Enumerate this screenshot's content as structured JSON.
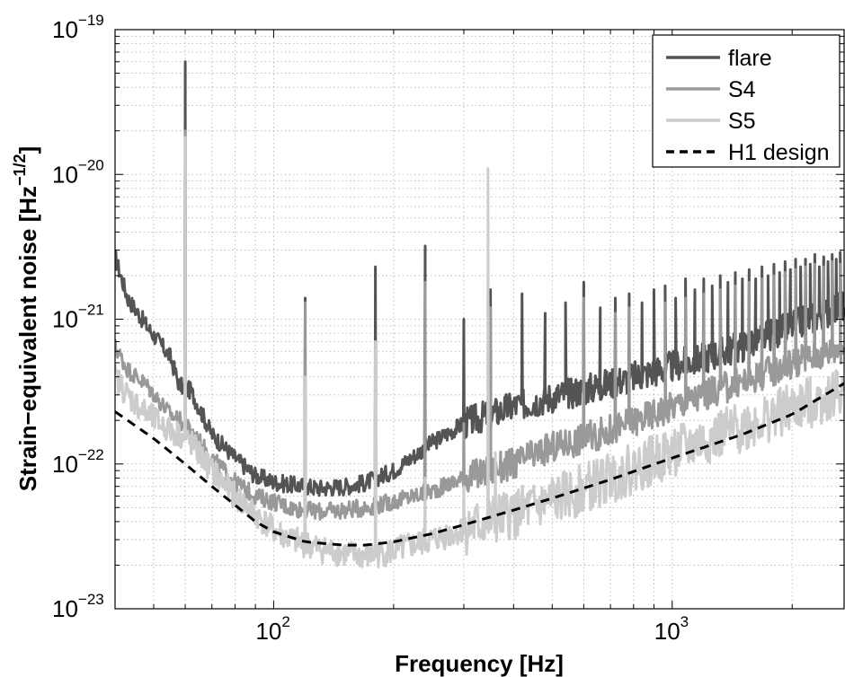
{
  "chart_data": {
    "type": "line",
    "title": "",
    "xscale": "log",
    "yscale": "log",
    "xlim": [
      40,
      2700
    ],
    "ylim": [
      1e-23,
      1e-19
    ],
    "grid": true,
    "legend_position": "top-right",
    "xlabel": "Frequency [Hz]",
    "ylabel": {
      "base": "Strain−equivalent noise [Hz",
      "sup": "−1/2",
      "close": "]"
    },
    "x_ticks": [
      {
        "base": "10",
        "exp": "2",
        "value": 100
      },
      {
        "base": "10",
        "exp": "3",
        "value": 1000
      }
    ],
    "y_ticks": [
      {
        "base": "10",
        "exp": "−23",
        "value": 1e-23
      },
      {
        "base": "10",
        "exp": "−22",
        "value": 1e-22
      },
      {
        "base": "10",
        "exp": "−21",
        "value": 1e-21
      },
      {
        "base": "10",
        "exp": "−20",
        "value": 1e-20
      },
      {
        "base": "10",
        "exp": "−19",
        "value": 1e-19
      }
    ],
    "series": [
      {
        "name": "flare",
        "color": "#545454",
        "style": "solid",
        "baseline": [
          [
            40,
            2.7e-21
          ],
          [
            43,
            1.4e-21
          ],
          [
            48,
            9e-22
          ],
          [
            55,
            5.5e-22
          ],
          [
            58,
            3.5e-22
          ],
          [
            62,
            3.2e-22
          ],
          [
            70,
            1.6e-22
          ],
          [
            80,
            1.1e-22
          ],
          [
            90,
            8.3e-23
          ],
          [
            100,
            7.5e-23
          ],
          [
            110,
            7.2e-23
          ],
          [
            120,
            7e-23
          ],
          [
            130,
            6.8e-23
          ],
          [
            150,
            7e-23
          ],
          [
            170,
            7.4e-23
          ],
          [
            200,
            9e-23
          ],
          [
            250,
            1.4e-22
          ],
          [
            300,
            1.9e-22
          ],
          [
            400,
            2.5e-22
          ],
          [
            500,
            2.9e-22
          ],
          [
            700,
            3.6e-22
          ],
          [
            1000,
            4.7e-22
          ],
          [
            1500,
            6.5e-22
          ],
          [
            2000,
            9e-22
          ],
          [
            2700,
            1.25e-21
          ]
        ],
        "peaks": [
          [
            60,
            6e-20
          ],
          [
            120,
            1.4e-21
          ],
          [
            180,
            2.3e-21
          ],
          [
            240,
            3.2e-21
          ],
          [
            300,
            1e-21
          ],
          [
            350,
            1.6e-21
          ],
          [
            420,
            1.5e-21
          ],
          [
            480,
            1.1e-21
          ],
          [
            540,
            1.3e-21
          ],
          [
            600,
            1.8e-21
          ],
          [
            660,
            1.2e-21
          ],
          [
            720,
            1.4e-21
          ],
          [
            780,
            1.5e-21
          ],
          [
            840,
            1.3e-21
          ],
          [
            900,
            1.6e-21
          ],
          [
            960,
            1.7e-21
          ],
          [
            1020,
            1.4e-21
          ],
          [
            1080,
            1.9e-21
          ],
          [
            1140,
            1.6e-21
          ],
          [
            1200,
            1.9e-21
          ],
          [
            1260,
            1.7e-21
          ],
          [
            1320,
            2e-21
          ],
          [
            1380,
            1.8e-21
          ],
          [
            1440,
            2.1e-21
          ],
          [
            1500,
            1.9e-21
          ],
          [
            1560,
            2.2e-21
          ],
          [
            1620,
            1.9e-21
          ],
          [
            1680,
            2.3e-21
          ],
          [
            1740,
            2e-21
          ],
          [
            1800,
            2.4e-21
          ],
          [
            1860,
            2.1e-21
          ],
          [
            1920,
            2.5e-21
          ],
          [
            1980,
            2.2e-21
          ],
          [
            2040,
            2.6e-21
          ],
          [
            2100,
            2.3e-21
          ],
          [
            2160,
            2.6e-21
          ],
          [
            2220,
            2.4e-21
          ],
          [
            2280,
            2.8e-21
          ],
          [
            2340,
            2.3e-21
          ],
          [
            2400,
            2.7e-21
          ],
          [
            2460,
            2.5e-21
          ],
          [
            2520,
            2.8e-21
          ],
          [
            2580,
            2.6e-21
          ],
          [
            2640,
            2.9e-21
          ]
        ]
      },
      {
        "name": "S4",
        "color": "#999999",
        "style": "solid",
        "baseline": [
          [
            40,
            6.5e-22
          ],
          [
            43,
            4.5e-22
          ],
          [
            48,
            3.5e-22
          ],
          [
            55,
            2.2e-22
          ],
          [
            58,
            2e-22
          ],
          [
            62,
            1.7e-22
          ],
          [
            70,
            1.1e-22
          ],
          [
            80,
            7.5e-23
          ],
          [
            90,
            6e-23
          ],
          [
            100,
            5.5e-23
          ],
          [
            110,
            5e-23
          ],
          [
            120,
            4.8e-23
          ],
          [
            130,
            4.7e-23
          ],
          [
            150,
            4.8e-23
          ],
          [
            170,
            5e-23
          ],
          [
            200,
            5.5e-23
          ],
          [
            250,
            6.5e-23
          ],
          [
            300,
            8e-23
          ],
          [
            400,
            1e-22
          ],
          [
            500,
            1.3e-22
          ],
          [
            700,
            1.7e-22
          ],
          [
            1000,
            2.5e-22
          ],
          [
            1500,
            3.7e-22
          ],
          [
            2000,
            5e-22
          ],
          [
            2700,
            6.5e-22
          ]
        ],
        "peaks": [
          [
            60,
            2e-20
          ],
          [
            120,
            1.3e-21
          ],
          [
            180,
            6e-22
          ],
          [
            240,
            1.8e-21
          ],
          [
            300,
            1.9e-22
          ],
          [
            350,
            1.2e-21
          ],
          [
            600,
            1.4e-21
          ],
          [
            720,
            1.1e-21
          ],
          [
            780,
            1.2e-21
          ],
          [
            960,
            1.3e-21
          ],
          [
            1080,
            1.4e-21
          ],
          [
            1200,
            1.5e-21
          ],
          [
            1320,
            1.6e-21
          ],
          [
            1440,
            1.7e-21
          ],
          [
            1560,
            1.8e-21
          ],
          [
            1680,
            1.9e-21
          ],
          [
            1800,
            2e-21
          ],
          [
            1920,
            2.1e-21
          ],
          [
            2040,
            2.2e-21
          ],
          [
            2160,
            2.3e-21
          ],
          [
            2280,
            2.4e-21
          ],
          [
            2400,
            2.3e-21
          ],
          [
            2520,
            2.5e-21
          ],
          [
            2640,
            2.4e-21
          ]
        ]
      },
      {
        "name": "S5",
        "color": "#cccccc",
        "style": "solid",
        "baseline": [
          [
            40,
            4e-22
          ],
          [
            43,
            3e-22
          ],
          [
            48,
            2.2e-22
          ],
          [
            55,
            1.7e-22
          ],
          [
            58,
            1.6e-22
          ],
          [
            62,
            1.4e-22
          ],
          [
            70,
            9e-23
          ],
          [
            80,
            6e-23
          ],
          [
            90,
            4.5e-23
          ],
          [
            100,
            3.5e-23
          ],
          [
            110,
            3e-23
          ],
          [
            120,
            2.8e-23
          ],
          [
            130,
            2.6e-23
          ],
          [
            150,
            2.4e-23
          ],
          [
            170,
            2.3e-23
          ],
          [
            200,
            2.5e-23
          ],
          [
            250,
            3e-23
          ],
          [
            300,
            3.5e-23
          ],
          [
            400,
            4.5e-23
          ],
          [
            500,
            5.5e-23
          ],
          [
            700,
            8e-23
          ],
          [
            1000,
            1.2e-22
          ],
          [
            1500,
            1.8e-22
          ],
          [
            2000,
            2.4e-22
          ],
          [
            2700,
            3.2e-22
          ]
        ],
        "peaks": [
          [
            60,
            1.8e-20
          ],
          [
            120,
            4e-22
          ],
          [
            180,
            7e-22
          ],
          [
            240,
            8e-23
          ],
          [
            300,
            7e-23
          ],
          [
            345,
            1.1e-20
          ],
          [
            360,
            1.2e-22
          ],
          [
            400,
            6e-23
          ],
          [
            500,
            8e-23
          ],
          [
            700,
            1e-22
          ],
          [
            1000,
            1.5e-22
          ],
          [
            1500,
            2.2e-22
          ],
          [
            2000,
            3e-22
          ],
          [
            2600,
            4.3e-22
          ]
        ]
      },
      {
        "name": "H1 design",
        "color": "#000000",
        "style": "dashed",
        "baseline": [
          [
            40,
            2.3e-22
          ],
          [
            50,
            1.5e-22
          ],
          [
            60,
            1e-22
          ],
          [
            70,
            7e-23
          ],
          [
            80,
            5.2e-23
          ],
          [
            90,
            4e-23
          ],
          [
            100,
            3.4e-23
          ],
          [
            120,
            2.9e-23
          ],
          [
            150,
            2.75e-23
          ],
          [
            170,
            2.75e-23
          ],
          [
            200,
            2.9e-23
          ],
          [
            250,
            3.3e-23
          ],
          [
            300,
            3.8e-23
          ],
          [
            400,
            4.8e-23
          ],
          [
            500,
            5.8e-23
          ],
          [
            700,
            7.8e-23
          ],
          [
            1000,
            1.1e-22
          ],
          [
            1500,
            1.6e-22
          ],
          [
            2000,
            2.2e-22
          ],
          [
            2700,
            3.6e-22
          ]
        ],
        "peaks": []
      }
    ]
  }
}
